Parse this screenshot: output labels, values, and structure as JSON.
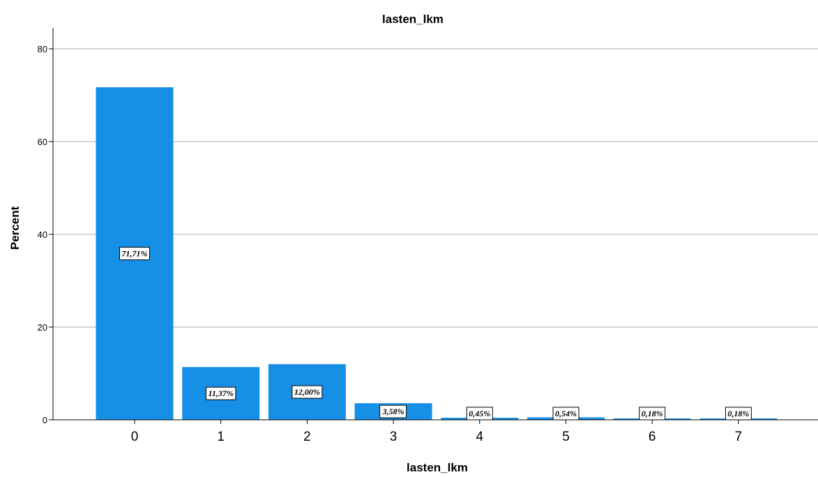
{
  "chart_data": {
    "type": "bar",
    "title": "lasten_lkm",
    "xlabel": "lasten_lkm",
    "ylabel": "Percent",
    "categories": [
      "0",
      "1",
      "2",
      "3",
      "4",
      "5",
      "6",
      "7"
    ],
    "values": [
      71.71,
      11.37,
      12.0,
      3.58,
      0.45,
      0.54,
      0.18,
      0.18
    ],
    "data_labels": [
      "71,71%",
      "11,37%",
      "12,00%",
      "3,58%",
      "0,45%",
      "0,54%",
      "0,18%",
      "0,18%"
    ],
    "ylim": [
      0,
      80
    ],
    "yticks": [
      0,
      20,
      40,
      60,
      80
    ],
    "grid": true,
    "bar_color": "#1690e6"
  }
}
